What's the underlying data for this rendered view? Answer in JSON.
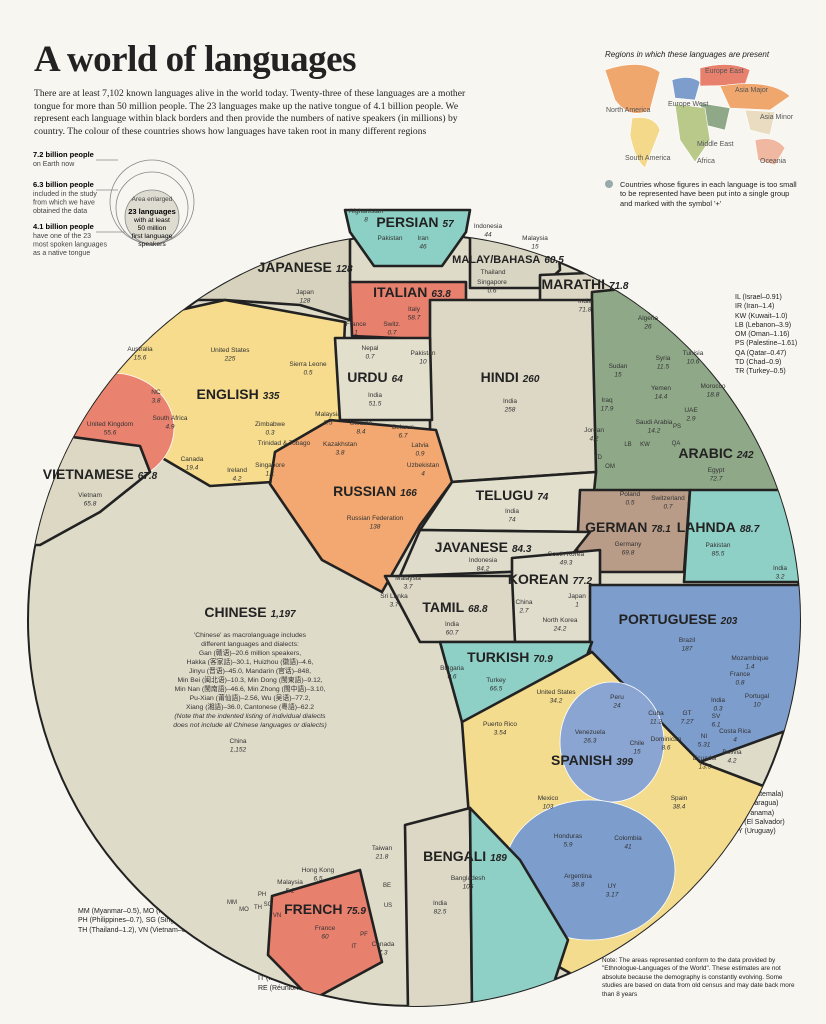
{
  "header": {
    "title": "A world of languages",
    "intro": "There are at least 7,102 known languages alive in the world today. Twenty-three of these languages are a mother tongue for more than 50 million people. The 23 languages make up the native tongue of 4.1 billion people. We represent each language within black borders and then provide the numbers of native speakers (in millions) by country. The colour of these countries shows how languages have taken root in many different regions"
  },
  "scale_legend": {
    "items": [
      {
        "value": "7.2 billion people",
        "lines": [
          "on Earth now"
        ]
      },
      {
        "value": "6.3 billion people",
        "lines": [
          "included in the study",
          "from which we have",
          "obtained the data"
        ]
      },
      {
        "value": "4.1 billion people",
        "lines": [
          "have one of the 23",
          "most spoken languages",
          "as a native tongue"
        ]
      }
    ],
    "area_label": "Area enlarged",
    "center_lines": [
      "23 languages",
      "with at least",
      "50 million",
      "first language",
      "speakers"
    ]
  },
  "regions_map": {
    "title": "Regions in which these languages are present",
    "regions": [
      "North America",
      "South America",
      "Europe West",
      "Europe East",
      "Asia Major",
      "Asia Minor",
      "Middle East",
      "Africa",
      "Oceania"
    ],
    "note": "Countries whose figures in each language is too small to be represented have been put into a single group and marked with the symbol '+'"
  },
  "languages": [
    {
      "name": "PERSIAN",
      "total": "57"
    },
    {
      "name": "MALAY/BAHASA",
      "total": "60.5"
    },
    {
      "name": "JAPANESE",
      "total": "128"
    },
    {
      "name": "ITALIAN",
      "total": "63.8"
    },
    {
      "name": "MARATHI",
      "total": "71.8"
    },
    {
      "name": "URDU",
      "total": "64"
    },
    {
      "name": "HINDI",
      "total": "260"
    },
    {
      "name": "ENGLISH",
      "total": "335"
    },
    {
      "name": "ARABIC",
      "total": "242"
    },
    {
      "name": "VIETNAMESE",
      "total": "67.8"
    },
    {
      "name": "RUSSIAN",
      "total": "166"
    },
    {
      "name": "TELUGU",
      "total": "74"
    },
    {
      "name": "GERMAN",
      "total": "78.1"
    },
    {
      "name": "LAHNDA",
      "total": "88.7"
    },
    {
      "name": "JAVANESE",
      "total": "84.3"
    },
    {
      "name": "KOREAN",
      "total": "77.2"
    },
    {
      "name": "TAMIL",
      "total": "68.8"
    },
    {
      "name": "PORTUGUESE",
      "total": "203"
    },
    {
      "name": "CHINESE",
      "total": "1,197"
    },
    {
      "name": "TURKISH",
      "total": "70.9"
    },
    {
      "name": "SPANISH",
      "total": "399"
    },
    {
      "name": "BENGALI",
      "total": "189"
    },
    {
      "name": "FRENCH",
      "total": "75.9"
    }
  ],
  "countries": [
    {
      "name": "Afghanistan",
      "value": "8"
    },
    {
      "name": "Pakistan"
    },
    {
      "name": "Iran",
      "value": "46"
    },
    {
      "name": "Indonesia",
      "value": "44"
    },
    {
      "name": "Malaysia",
      "value": "15"
    },
    {
      "name": "Thailand"
    },
    {
      "name": "Singapore",
      "value": "0.6"
    },
    {
      "name": "Japan",
      "value": "128"
    },
    {
      "name": "Italy",
      "value": "58.7"
    },
    {
      "name": "France",
      "value": "1"
    },
    {
      "name": "Switz.",
      "value": "0.7"
    },
    {
      "name": "India",
      "value": "71.8"
    },
    {
      "name": "Nepal",
      "value": "0.7"
    },
    {
      "name": "Pakistan",
      "value": "10"
    },
    {
      "name": "India",
      "value": "51.5"
    },
    {
      "name": "India",
      "value": "258"
    },
    {
      "name": "United States",
      "value": "225"
    },
    {
      "name": "Sierra Leone",
      "value": "0.5"
    },
    {
      "name": "Australia",
      "value": "15.6"
    },
    {
      "name": "NC",
      "value": "3.8"
    },
    {
      "name": "South Africa",
      "value": "4.9"
    },
    {
      "name": "United Kingdom",
      "value": "55.6"
    },
    {
      "name": "Canada",
      "value": "19.4"
    },
    {
      "name": "Ireland",
      "value": "4.2"
    },
    {
      "name": "Singapore",
      "value": "1.1"
    },
    {
      "name": "Zimbabwe",
      "value": "0.3"
    },
    {
      "name": "Trinidad & Tobago"
    },
    {
      "name": "Malaysia",
      "value": "0.5"
    },
    {
      "name": "Ukraine",
      "value": "8.4"
    },
    {
      "name": "Belarus",
      "value": "6.7"
    },
    {
      "name": "Kazakhstan",
      "value": "3.8"
    },
    {
      "name": "Latvia",
      "value": "0.9"
    },
    {
      "name": "Uzbekistan",
      "value": "4"
    },
    {
      "name": "Russian Federation",
      "value": "138"
    },
    {
      "name": "India",
      "value": "74"
    },
    {
      "name": "Vietnam",
      "value": "65.8"
    },
    {
      "name": "Algeria",
      "value": "26"
    },
    {
      "name": "Tunisia",
      "value": "10.6"
    },
    {
      "name": "Syria",
      "value": "11.5"
    },
    {
      "name": "Sudan",
      "value": "15"
    },
    {
      "name": "Yemen",
      "value": "14.4"
    },
    {
      "name": "Morocco",
      "value": "18.8"
    },
    {
      "name": "Iraq",
      "value": "17.9"
    },
    {
      "name": "Saudi Arabia",
      "value": "14.2"
    },
    {
      "name": "UAE",
      "value": "2.9"
    },
    {
      "name": "Jordan",
      "value": "4.2"
    },
    {
      "name": "Egypt",
      "value": "72.7"
    },
    {
      "name": "Poland",
      "value": "0.5"
    },
    {
      "name": "Switzerland",
      "value": "0.7"
    },
    {
      "name": "Germany",
      "value": "69.8"
    },
    {
      "name": "Pakistan",
      "value": "85.5"
    },
    {
      "name": "India",
      "value": "3.2"
    },
    {
      "name": "Indonesia",
      "value": "84.2"
    },
    {
      "name": "South Korea",
      "value": "49.3"
    },
    {
      "name": "North Korea",
      "value": "24.2"
    },
    {
      "name": "China",
      "value": "2.7"
    },
    {
      "name": "Japan",
      "value": "1"
    },
    {
      "name": "Malaysia",
      "value": "3.7"
    },
    {
      "name": "Sri Lanka",
      "value": "3.7"
    },
    {
      "name": "India",
      "value": "60.7"
    },
    {
      "name": "Brazil",
      "value": "187"
    },
    {
      "name": "Mozambique",
      "value": "1.4"
    },
    {
      "name": "France",
      "value": "0.8"
    },
    {
      "name": "India",
      "value": "0.3"
    },
    {
      "name": "Portugal",
      "value": "10"
    },
    {
      "name": "Bulgaria",
      "value": "0.6"
    },
    {
      "name": "Turkey",
      "value": "66.5"
    },
    {
      "name": "China",
      "value": "1,152"
    },
    {
      "name": "United States",
      "value": "34.2"
    },
    {
      "name": "Puerto Rico",
      "value": "3.54"
    },
    {
      "name": "Peru",
      "value": "24"
    },
    {
      "name": "Venezuela",
      "value": "26.3"
    },
    {
      "name": "Chile",
      "value": "15"
    },
    {
      "name": "Cuba",
      "value": "11.2"
    },
    {
      "name": "Dominican",
      "value": "8.6"
    },
    {
      "name": "GT",
      "value": "7.27"
    },
    {
      "name": "NI",
      "value": "5.31"
    },
    {
      "name": "SV",
      "value": "6.1"
    },
    {
      "name": "Costa Rica",
      "value": "4"
    },
    {
      "name": "Bolivia",
      "value": "4.2"
    },
    {
      "name": "Ecuador",
      "value": "13.5"
    },
    {
      "name": "Mexico",
      "value": "103"
    },
    {
      "name": "Spain",
      "value": "38.4"
    },
    {
      "name": "Honduras",
      "value": "5.9"
    },
    {
      "name": "Colombia",
      "value": "41"
    },
    {
      "name": "Argentina",
      "value": "38.8"
    },
    {
      "name": "UY",
      "value": "3.17"
    },
    {
      "name": "Taiwan",
      "value": "21.8"
    },
    {
      "name": "Hong Kong",
      "value": "6.5"
    },
    {
      "name": "Malaysia",
      "value": "5.1"
    },
    {
      "name": "Bangladesh",
      "value": "106"
    },
    {
      "name": "India",
      "value": "82.5"
    },
    {
      "name": "France",
      "value": "60"
    },
    {
      "name": "Canada",
      "value": "7.3"
    }
  ],
  "small_codes": [
    "BE",
    "US",
    "PF",
    "IT",
    "PH",
    "SG",
    "MM",
    "MO",
    "TH",
    "VN",
    "LB",
    "KW",
    "OM",
    "PS",
    "QA",
    "TD"
  ],
  "chinese_note": [
    "'Chinese' as macrolanguage includes",
    "different languages and dialects:",
    "Gan (赣语)–20.6 million speakers,",
    "Hakka (客家話)–30.1, Huizhou (徽語)–4.6,",
    "Jinyu (晋语)–45.0, Mandarin (官话)–848,",
    "Min Bei (闽北语)–10.3, Min Dong (閩東語)–9.12,",
    "Min Nan (閩南語)–46.6, Min Zhong (閩中語)–3.10,",
    "Pu-Xian (莆仙語)–2.56, Wu (吴语)–77.2,",
    "Xiang (湘語)–36.0, Cantonese (粵語)–62.2",
    "(Note that the indented listing of individual dialects",
    "does not include all Chinese languages or dialects)"
  ],
  "footnotes": {
    "arabic_codes": [
      "IL (Israel–0.91)",
      "IR (Iran–1.4)",
      "KW (Kuwait–1.0)",
      "LB (Lebanon–3.9)",
      "OM (Oman–1.16)",
      "PS (Palestine–1.61)",
      "QA (Qatar–0.47)",
      "TD (Chad–0.9)",
      "TR (Turkey–0.5)"
    ],
    "spanish_codes": [
      "GT (Guatemala)",
      "NI (Nicaragua)",
      "PA (Panama)",
      "SV (El Salvador)",
      "UY (Uruguay)"
    ],
    "chinese_codes": [
      "MM (Myanmar–0.5), MO (Macau–0.5),",
      "PH (Philippines–0.7), SG (Singapore–1.8),",
      "TH (Thailand–1.2), VN (Vietnam–0.9)"
    ],
    "french_codes": [
      "BE (Belgium–3.9), CH (Switzerland–1.9),",
      "IT (Italy–0.1), PF (French Polynesia–0.2),",
      "RE (Réunion–0.7), US (United States–1.3)"
    ],
    "note": "Note: The areas represented conform to the data provided by \"Ethnologue-Languages of the World\". These estimates are not absolute because the demography is constantly evolving. Some studies are based on data from old census and may date back more than 8 years"
  }
}
